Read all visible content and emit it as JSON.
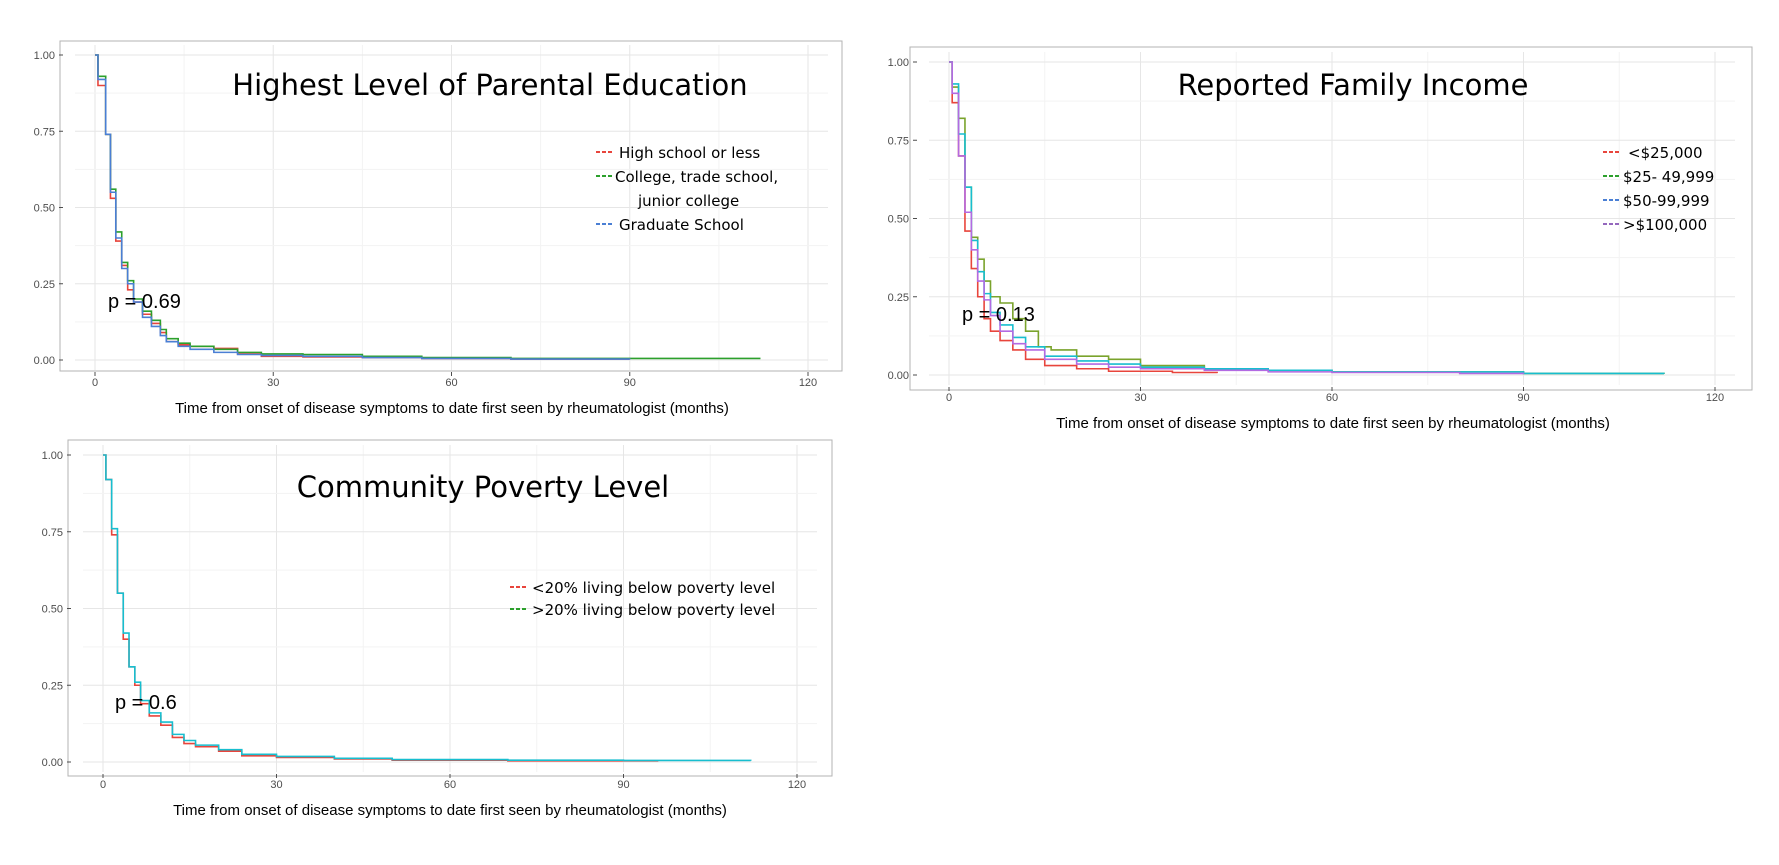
{
  "chart_data": [
    {
      "type": "line",
      "title": "Highest Level of Parental Education",
      "xlabel": "Time from onset of disease symptoms to date first seen by rheumatologist (months)",
      "ylabel": "",
      "xlim": [
        0,
        120
      ],
      "ylim": [
        0,
        1
      ],
      "xticks": [
        "0",
        "30",
        "60",
        "90",
        "120"
      ],
      "yticks": [
        "0.00",
        "0.25",
        "0.50",
        "0.75",
        "1.00"
      ],
      "annotation": "p = 0.69",
      "grid": true,
      "legend_position": "right",
      "legend": [
        "High school or less",
        "College, trade school,",
        "junior college",
        "Graduate School"
      ],
      "series": [
        {
          "name": "High school or less",
          "color": "#e8453c",
          "points": [
            [
              0,
              1.0
            ],
            [
              0.5,
              0.9
            ],
            [
              1.8,
              0.74
            ],
            [
              2.6,
              0.53
            ],
            [
              3.5,
              0.39
            ],
            [
              4.5,
              0.31
            ],
            [
              5.5,
              0.23
            ],
            [
              6.5,
              0.19
            ],
            [
              8,
              0.15
            ],
            [
              9.5,
              0.12
            ],
            [
              11,
              0.09
            ],
            [
              12,
              0.06
            ],
            [
              14,
              0.05
            ],
            [
              16,
              0.045
            ],
            [
              20,
              0.038
            ],
            [
              24,
              0.02
            ],
            [
              28,
              0.012
            ],
            [
              35,
              0.01
            ],
            [
              45,
              0.008
            ],
            [
              55,
              0.005
            ],
            [
              70,
              0.003
            ],
            [
              90,
              0.002
            ]
          ]
        },
        {
          "name": "College, trade school, junior college",
          "color": "#2ca02c",
          "points": [
            [
              0,
              1.0
            ],
            [
              0.5,
              0.93
            ],
            [
              1.8,
              0.74
            ],
            [
              2.6,
              0.56
            ],
            [
              3.5,
              0.42
            ],
            [
              4.5,
              0.32
            ],
            [
              5.5,
              0.26
            ],
            [
              6.5,
              0.2
            ],
            [
              8,
              0.16
            ],
            [
              9.5,
              0.13
            ],
            [
              11,
              0.1
            ],
            [
              12,
              0.07
            ],
            [
              14,
              0.055
            ],
            [
              16,
              0.045
            ],
            [
              20,
              0.035
            ],
            [
              24,
              0.025
            ],
            [
              28,
              0.02
            ],
            [
              35,
              0.018
            ],
            [
              45,
              0.012
            ],
            [
              55,
              0.008
            ],
            [
              70,
              0.005
            ],
            [
              90,
              0.005
            ],
            [
              112,
              0.005
            ]
          ]
        },
        {
          "name": "Graduate School",
          "color": "#4a7fd4",
          "points": [
            [
              0,
              1.0
            ],
            [
              0.5,
              0.92
            ],
            [
              1.8,
              0.74
            ],
            [
              2.6,
              0.55
            ],
            [
              3.5,
              0.4
            ],
            [
              4.5,
              0.3
            ],
            [
              5.5,
              0.25
            ],
            [
              6.5,
              0.19
            ],
            [
              8,
              0.14
            ],
            [
              9.5,
              0.11
            ],
            [
              11,
              0.08
            ],
            [
              12,
              0.06
            ],
            [
              14,
              0.045
            ],
            [
              16,
              0.035
            ],
            [
              20,
              0.025
            ],
            [
              24,
              0.018
            ],
            [
              28,
              0.015
            ],
            [
              35,
              0.012
            ],
            [
              45,
              0.008
            ],
            [
              55,
              0.005
            ],
            [
              70,
              0.003
            ],
            [
              90,
              0.002
            ]
          ]
        }
      ]
    },
    {
      "type": "line",
      "title": "Reported Family Income",
      "xlabel": "Time from onset of disease symptoms to date first seen by rheumatologist (months)",
      "ylabel": "",
      "xlim": [
        0,
        120
      ],
      "ylim": [
        0,
        1
      ],
      "xticks": [
        "0",
        "30",
        "60",
        "90",
        "120"
      ],
      "yticks": [
        "0.00",
        "0.25",
        "0.50",
        "0.75",
        "1.00"
      ],
      "annotation": "p = 0.13",
      "grid": true,
      "legend_position": "right",
      "legend": [
        "<$25,000",
        "$25- 49,999",
        "$50-99,999",
        ">$100,000"
      ],
      "series": [
        {
          "name": "<$25,000",
          "color": "#e8453c",
          "points": [
            [
              0,
              1.0
            ],
            [
              0.5,
              0.87
            ],
            [
              1.5,
              0.7
            ],
            [
              2.5,
              0.46
            ],
            [
              3.5,
              0.34
            ],
            [
              4.5,
              0.25
            ],
            [
              5.5,
              0.18
            ],
            [
              6.5,
              0.14
            ],
            [
              8,
              0.11
            ],
            [
              10,
              0.08
            ],
            [
              12,
              0.05
            ],
            [
              15,
              0.03
            ],
            [
              20,
              0.02
            ],
            [
              25,
              0.012
            ],
            [
              35,
              0.008
            ],
            [
              42,
              0.006
            ]
          ]
        },
        {
          "name": "$25- 49,999",
          "color": "#7aa32c",
          "points": [
            [
              0,
              1.0
            ],
            [
              0.5,
              0.92
            ],
            [
              1.5,
              0.82
            ],
            [
              2.5,
              0.6
            ],
            [
              3.5,
              0.44
            ],
            [
              4.5,
              0.37
            ],
            [
              5.5,
              0.3
            ],
            [
              6.5,
              0.25
            ],
            [
              8,
              0.23
            ],
            [
              10,
              0.18
            ],
            [
              12,
              0.14
            ],
            [
              14,
              0.09
            ],
            [
              16,
              0.08
            ],
            [
              20,
              0.06
            ],
            [
              25,
              0.05
            ],
            [
              30,
              0.03
            ],
            [
              40,
              0.02
            ],
            [
              50,
              0.015
            ],
            [
              60,
              0.01
            ],
            [
              90,
              0.005
            ],
            [
              112,
              0.003
            ]
          ]
        },
        {
          "name": "$50-99,999",
          "color": "#17becf",
          "points": [
            [
              0,
              1.0
            ],
            [
              0.5,
              0.93
            ],
            [
              1.5,
              0.77
            ],
            [
              2.5,
              0.6
            ],
            [
              3.5,
              0.43
            ],
            [
              4.5,
              0.33
            ],
            [
              5.5,
              0.26
            ],
            [
              6.5,
              0.2
            ],
            [
              8,
              0.16
            ],
            [
              10,
              0.12
            ],
            [
              12,
              0.09
            ],
            [
              15,
              0.06
            ],
            [
              20,
              0.045
            ],
            [
              25,
              0.035
            ],
            [
              30,
              0.025
            ],
            [
              40,
              0.02
            ],
            [
              50,
              0.015
            ],
            [
              60,
              0.01
            ],
            [
              90,
              0.005
            ],
            [
              112,
              0.004
            ]
          ]
        },
        {
          "name": ">$100,000",
          "color": "#b36ae2",
          "points": [
            [
              0,
              1.0
            ],
            [
              0.5,
              0.9
            ],
            [
              1.5,
              0.7
            ],
            [
              2.5,
              0.52
            ],
            [
              3.5,
              0.4
            ],
            [
              4.5,
              0.3
            ],
            [
              5.5,
              0.24
            ],
            [
              6.5,
              0.19
            ],
            [
              8,
              0.14
            ],
            [
              10,
              0.1
            ],
            [
              12,
              0.08
            ],
            [
              15,
              0.05
            ],
            [
              20,
              0.035
            ],
            [
              25,
              0.025
            ],
            [
              30,
              0.02
            ],
            [
              40,
              0.015
            ],
            [
              50,
              0.01
            ],
            [
              60,
              0.008
            ],
            [
              80,
              0.005
            ],
            [
              90,
              0.004
            ]
          ]
        }
      ]
    },
    {
      "type": "line",
      "title": "Community Poverty Level",
      "xlabel": "Time from onset of disease symptoms to date first seen by rheumatologist (months)",
      "ylabel": "",
      "xlim": [
        0,
        120
      ],
      "ylim": [
        0,
        1
      ],
      "xticks": [
        "0",
        "30",
        "60",
        "90",
        "120"
      ],
      "yticks": [
        "0.00",
        "0.25",
        "0.50",
        "0.75",
        "1.00"
      ],
      "annotation": "p = 0.6",
      "grid": true,
      "legend_position": "right",
      "legend": [
        "<20% living below poverty level",
        ">20% living below poverty level"
      ],
      "series": [
        {
          "name": "<20% living below poverty level",
          "color": "#e8453c",
          "points": [
            [
              0,
              1.0
            ],
            [
              0.5,
              0.92
            ],
            [
              1.5,
              0.74
            ],
            [
              2.5,
              0.55
            ],
            [
              3.5,
              0.4
            ],
            [
              4.5,
              0.31
            ],
            [
              5.5,
              0.25
            ],
            [
              6.5,
              0.19
            ],
            [
              8,
              0.15
            ],
            [
              10,
              0.12
            ],
            [
              12,
              0.08
            ],
            [
              14,
              0.06
            ],
            [
              16,
              0.05
            ],
            [
              20,
              0.035
            ],
            [
              24,
              0.02
            ],
            [
              30,
              0.015
            ],
            [
              40,
              0.01
            ],
            [
              50,
              0.006
            ],
            [
              70,
              0.004
            ],
            [
              96,
              0.003
            ]
          ]
        },
        {
          "name": ">20% living below poverty level",
          "color": "#17becf",
          "points": [
            [
              0,
              1.0
            ],
            [
              0.5,
              0.92
            ],
            [
              1.5,
              0.76
            ],
            [
              2.5,
              0.55
            ],
            [
              3.5,
              0.42
            ],
            [
              4.5,
              0.31
            ],
            [
              5.5,
              0.26
            ],
            [
              6.5,
              0.2
            ],
            [
              8,
              0.16
            ],
            [
              10,
              0.13
            ],
            [
              12,
              0.09
            ],
            [
              14,
              0.07
            ],
            [
              16,
              0.055
            ],
            [
              20,
              0.04
            ],
            [
              24,
              0.025
            ],
            [
              30,
              0.018
            ],
            [
              40,
              0.012
            ],
            [
              50,
              0.008
            ],
            [
              70,
              0.006
            ],
            [
              90,
              0.005
            ],
            [
              112,
              0.004
            ]
          ]
        }
      ]
    }
  ]
}
